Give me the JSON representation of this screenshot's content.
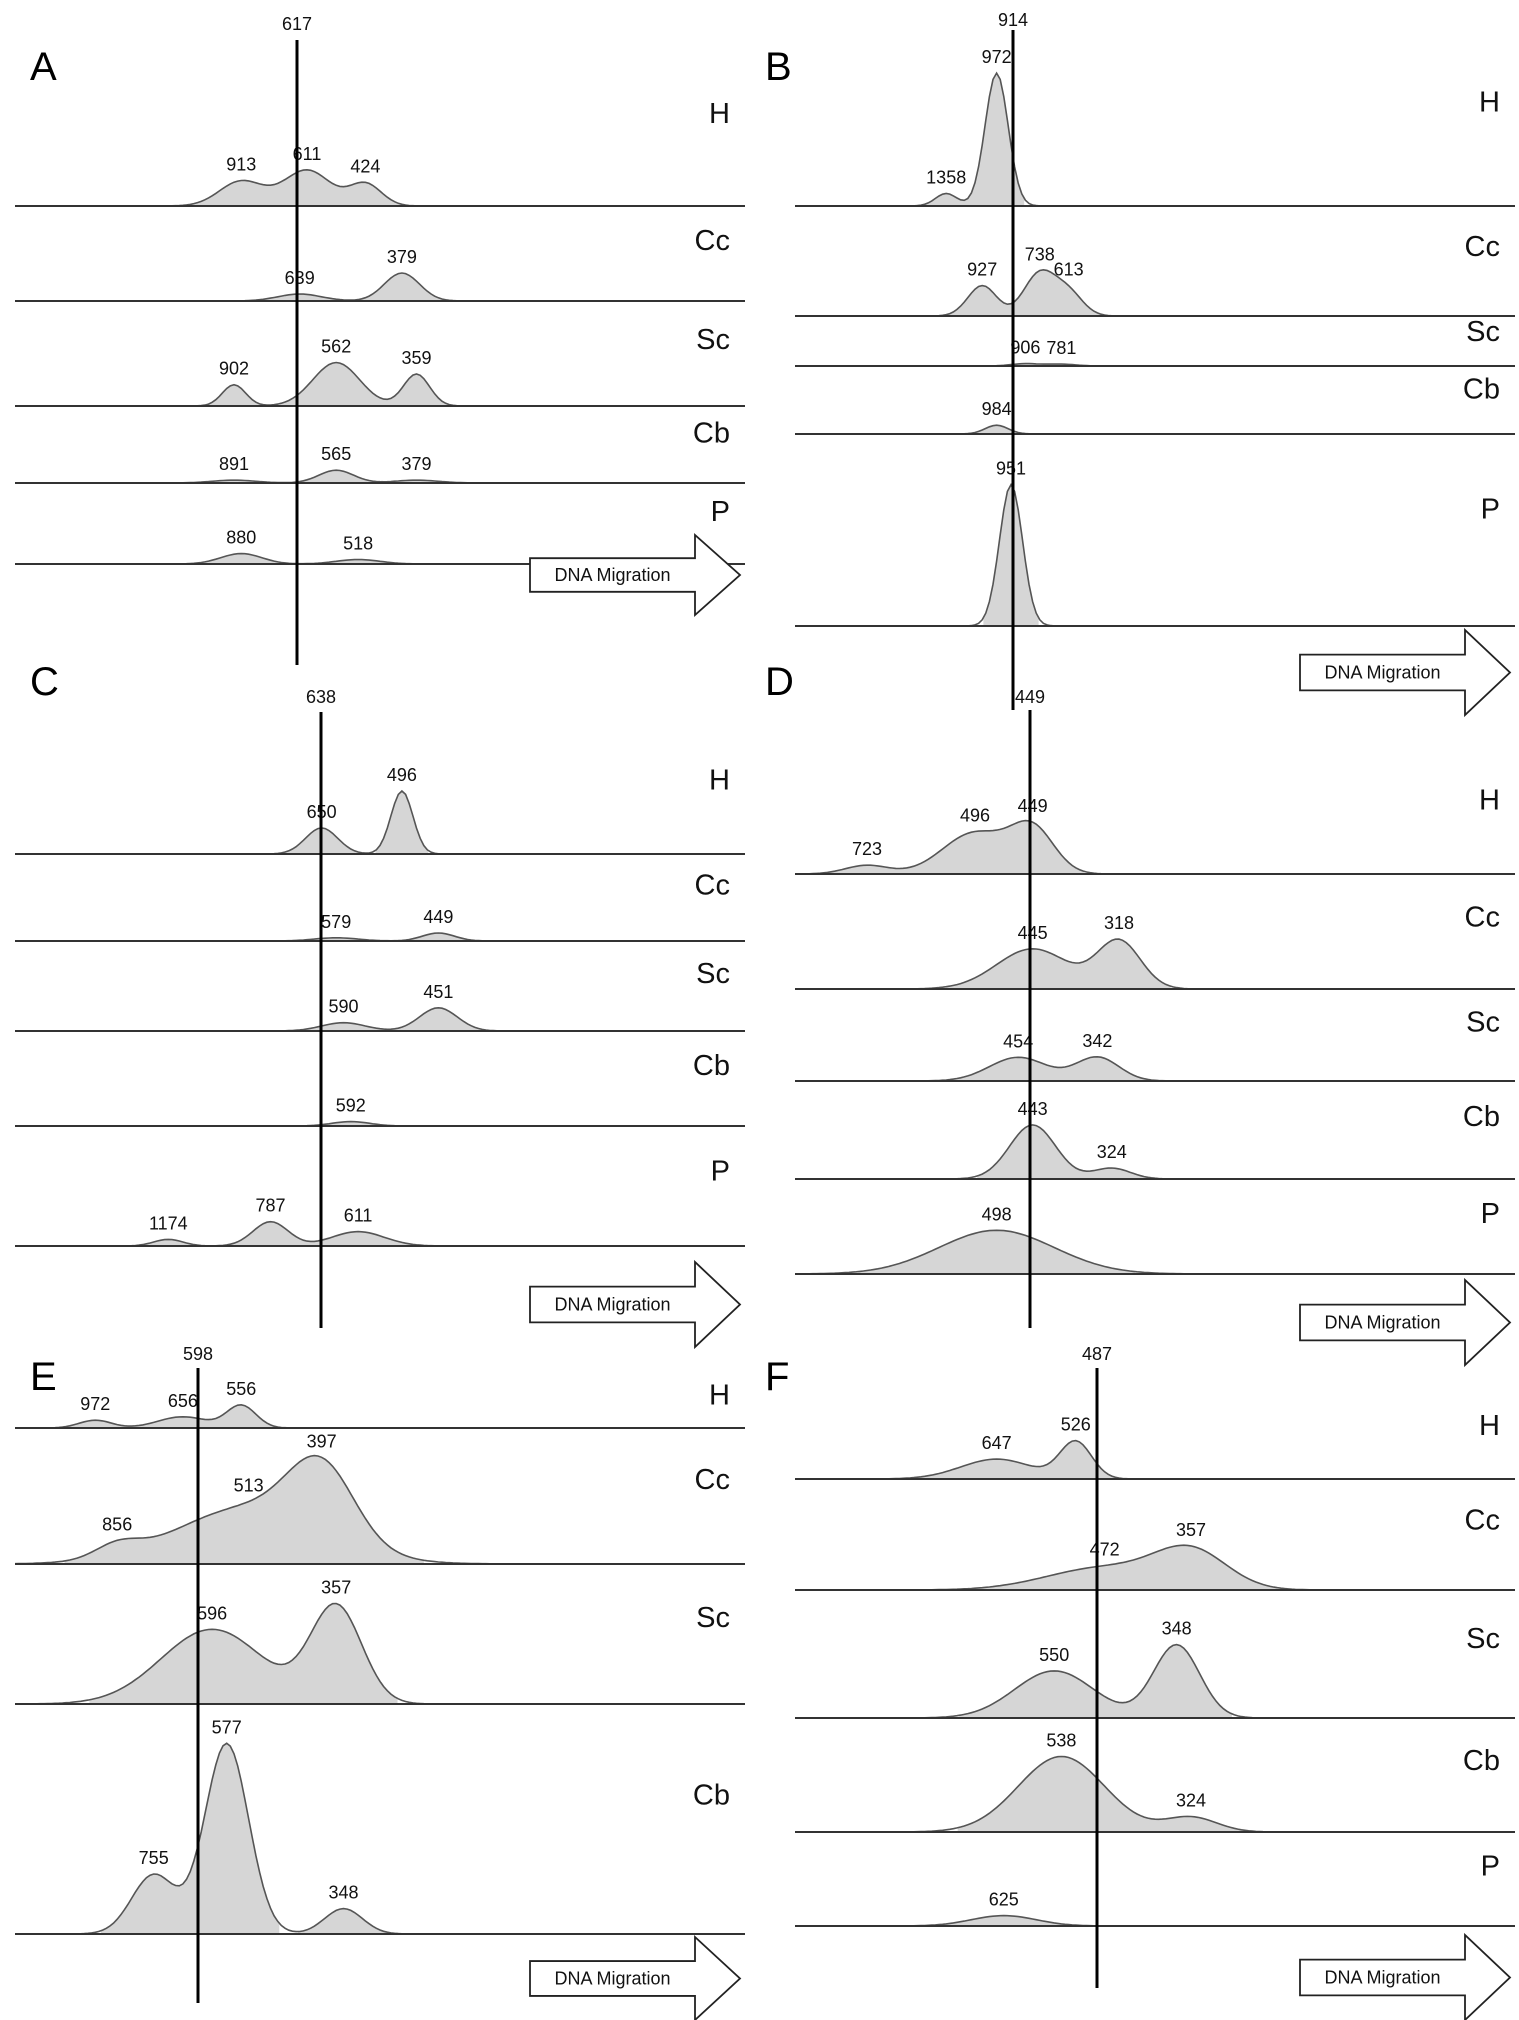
{
  "figure": {
    "arrow_label": "DNA Migration"
  },
  "chart_data": [
    {
      "type": "area",
      "panel": "A",
      "reference_line": "617",
      "xlim": [
        0,
        100
      ],
      "series": [
        {
          "name": "H",
          "peaks": [
            {
              "label": "913",
              "x": 31,
              "h": 0.18,
              "w": 3.0
            },
            {
              "label": "611",
              "x": 40,
              "h": 0.26,
              "w": 3.2
            },
            {
              "label": "424",
              "x": 48,
              "h": 0.16,
              "w": 2.2
            }
          ]
        },
        {
          "name": "Cc",
          "peaks": [
            {
              "label": "639",
              "x": 39,
              "h": 0.08,
              "w": 3.0
            },
            {
              "label": "379",
              "x": 53,
              "h": 0.32,
              "w": 2.4
            }
          ]
        },
        {
          "name": "Sc",
          "peaks": [
            {
              "label": "902",
              "x": 30,
              "h": 0.22,
              "w": 1.6
            },
            {
              "label": "562",
              "x": 44,
              "h": 0.45,
              "w": 3.2
            },
            {
              "label": "359",
              "x": 55,
              "h": 0.33,
              "w": 1.8
            }
          ]
        },
        {
          "name": "Cb",
          "peaks": [
            {
              "label": "891",
              "x": 30,
              "h": 0.04,
              "w": 3.0
            },
            {
              "label": "565",
              "x": 44,
              "h": 0.18,
              "w": 2.4
            },
            {
              "label": "379",
              "x": 55,
              "h": 0.04,
              "w": 3.0
            }
          ]
        },
        {
          "name": "P",
          "peaks": [
            {
              "label": "880",
              "x": 31,
              "h": 0.14,
              "w": 2.8
            },
            {
              "label": "518",
              "x": 47,
              "h": 0.06,
              "w": 3.0
            }
          ]
        }
      ]
    },
    {
      "type": "area",
      "panel": "B",
      "reference_line": "914",
      "xlim": [
        0,
        100
      ],
      "series": [
        {
          "name": "H",
          "peaks": [
            {
              "label": "1358",
              "x": 21,
              "h": 0.08,
              "w": 1.5
            },
            {
              "label": "972",
              "x": 28,
              "h": 0.85,
              "w": 1.6
            }
          ]
        },
        {
          "name": "Cc",
          "peaks": [
            {
              "label": "927",
              "x": 26,
              "h": 0.3,
              "w": 2.0
            },
            {
              "label": "738",
              "x": 34,
              "h": 0.42,
              "w": 2.2
            },
            {
              "label": "613",
              "x": 38,
              "h": 0.22,
              "w": 2.0
            }
          ]
        },
        {
          "name": "Sc",
          "peaks": [
            {
              "label": "906",
              "x": 32,
              "h": 0.05,
              "w": 2.0
            },
            {
              "label": "781",
              "x": 37,
              "h": 0.04,
              "w": 2.0
            }
          ]
        },
        {
          "name": "Cb",
          "peaks": [
            {
              "label": "984",
              "x": 28,
              "h": 0.14,
              "w": 1.6
            }
          ]
        },
        {
          "name": "P",
          "peaks": [
            {
              "label": "951",
              "x": 30,
              "h": 0.8,
              "w": 1.6
            }
          ]
        }
      ]
    },
    {
      "type": "area",
      "panel": "C",
      "reference_line": "638",
      "xlim": [
        0,
        100
      ],
      "series": [
        {
          "name": "H",
          "peaks": [
            {
              "label": "650",
              "x": 42,
              "h": 0.24,
              "w": 2.2
            },
            {
              "label": "496",
              "x": 53,
              "h": 0.58,
              "w": 1.5
            }
          ]
        },
        {
          "name": "Cc",
          "peaks": [
            {
              "label": "579",
              "x": 44,
              "h": 0.04,
              "w": 3.0
            },
            {
              "label": "449",
              "x": 58,
              "h": 0.1,
              "w": 2.2
            }
          ]
        },
        {
          "name": "Sc",
          "peaks": [
            {
              "label": "590",
              "x": 45,
              "h": 0.1,
              "w": 3.0
            },
            {
              "label": "451",
              "x": 58,
              "h": 0.28,
              "w": 2.6
            }
          ]
        },
        {
          "name": "Cb",
          "peaks": [
            {
              "label": "592",
              "x": 46,
              "h": 0.05,
              "w": 2.6
            }
          ]
        },
        {
          "name": "P",
          "peaks": [
            {
              "label": "1174",
              "x": 21,
              "h": 0.06,
              "w": 2.0
            },
            {
              "label": "787",
              "x": 35,
              "h": 0.22,
              "w": 2.4
            },
            {
              "label": "611",
              "x": 47,
              "h": 0.13,
              "w": 3.6
            }
          ]
        }
      ]
    },
    {
      "type": "area",
      "panel": "D",
      "reference_line": "449",
      "xlim": [
        0,
        100
      ],
      "series": [
        {
          "name": "H",
          "peaks": [
            {
              "label": "723",
              "x": 10,
              "h": 0.08,
              "w": 3.0
            },
            {
              "label": "496",
              "x": 25,
              "h": 0.38,
              "w": 4.5
            },
            {
              "label": "449",
              "x": 33,
              "h": 0.4,
              "w": 3.0
            }
          ]
        },
        {
          "name": "Cc",
          "peaks": [
            {
              "label": "445",
              "x": 33,
              "h": 0.38,
              "w": 5.0
            },
            {
              "label": "318",
              "x": 45,
              "h": 0.45,
              "w": 3.0
            }
          ]
        },
        {
          "name": "Sc",
          "peaks": [
            {
              "label": "454",
              "x": 31,
              "h": 0.28,
              "w": 4.0
            },
            {
              "label": "342",
              "x": 42,
              "h": 0.28,
              "w": 3.0
            }
          ]
        },
        {
          "name": "Cb",
          "peaks": [
            {
              "label": "443",
              "x": 33,
              "h": 0.6,
              "w": 3.2
            },
            {
              "label": "324",
              "x": 44,
              "h": 0.12,
              "w": 2.6
            }
          ]
        },
        {
          "name": "P",
          "peaks": [
            {
              "label": "498",
              "x": 28,
              "h": 0.5,
              "w": 8.0
            }
          ]
        }
      ]
    },
    {
      "type": "area",
      "panel": "E",
      "reference_line": "598",
      "xlim": [
        0,
        100
      ],
      "series": [
        {
          "name": "H",
          "peaks": [
            {
              "label": "972",
              "x": 11,
              "h": 0.18,
              "w": 2.2
            },
            {
              "label": "656",
              "x": 23,
              "h": 0.26,
              "w": 3.4
            },
            {
              "label": "556",
              "x": 31,
              "h": 0.52,
              "w": 2.0
            }
          ]
        },
        {
          "name": "Cc",
          "peaks": [
            {
              "label": "856",
              "x": 14,
              "h": 0.1,
              "w": 3.0
            },
            {
              "label": "513",
              "x": 32,
              "h": 0.45,
              "w": 10.0
            },
            {
              "label": "397",
              "x": 42,
              "h": 0.58,
              "w": 4.5
            }
          ]
        },
        {
          "name": "Sc",
          "peaks": [
            {
              "label": "596",
              "x": 27,
              "h": 0.58,
              "w": 7.0
            },
            {
              "label": "357",
              "x": 44,
              "h": 0.75,
              "w": 3.5
            }
          ]
        },
        {
          "name": "Cb",
          "peaks": [
            {
              "label": "755",
              "x": 19,
              "h": 0.28,
              "w": 3.0
            },
            {
              "label": "577",
              "x": 29,
              "h": 0.9,
              "w": 3.0
            },
            {
              "label": "348",
              "x": 45,
              "h": 0.12,
              "w": 2.6
            }
          ]
        }
      ]
    },
    {
      "type": "area",
      "panel": "F",
      "reference_line": "487",
      "xlim": [
        0,
        100
      ],
      "series": [
        {
          "name": "H",
          "peaks": [
            {
              "label": "647",
              "x": 28,
              "h": 0.26,
              "w": 5.0
            },
            {
              "label": "526",
              "x": 39,
              "h": 0.48,
              "w": 2.2
            }
          ]
        },
        {
          "name": "Cc",
          "peaks": [
            {
              "label": "472",
              "x": 43,
              "h": 0.22,
              "w": 8.0
            },
            {
              "label": "357",
              "x": 55,
              "h": 0.36,
              "w": 5.0
            }
          ]
        },
        {
          "name": "Sc",
          "peaks": [
            {
              "label": "550",
              "x": 36,
              "h": 0.4,
              "w": 5.5
            },
            {
              "label": "348",
              "x": 53,
              "h": 0.62,
              "w": 3.2
            }
          ]
        },
        {
          "name": "Cb",
          "peaks": [
            {
              "label": "538",
              "x": 37,
              "h": 0.72,
              "w": 6.0
            },
            {
              "label": "324",
              "x": 55,
              "h": 0.14,
              "w": 3.6
            }
          ]
        },
        {
          "name": "P",
          "peaks": [
            {
              "label": "625",
              "x": 29,
              "h": 0.12,
              "w": 4.5
            }
          ]
        }
      ]
    }
  ]
}
